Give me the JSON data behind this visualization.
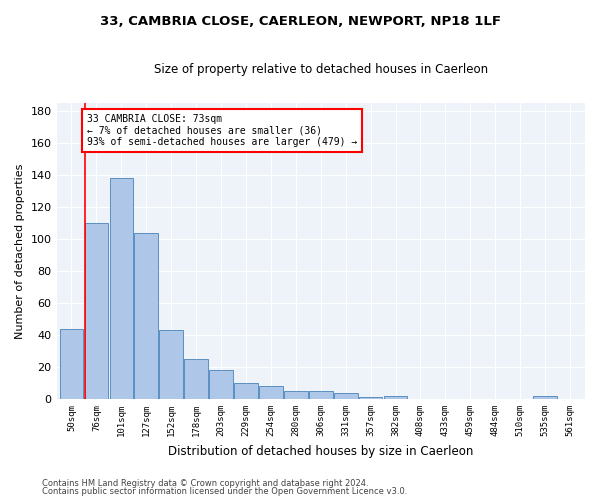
{
  "title1": "33, CAMBRIA CLOSE, CAERLEON, NEWPORT, NP18 1LF",
  "title2": "Size of property relative to detached houses in Caerleon",
  "xlabel": "Distribution of detached houses by size in Caerleon",
  "ylabel": "Number of detached properties",
  "categories": [
    "50sqm",
    "76sqm",
    "101sqm",
    "127sqm",
    "152sqm",
    "178sqm",
    "203sqm",
    "229sqm",
    "254sqm",
    "280sqm",
    "306sqm",
    "331sqm",
    "357sqm",
    "382sqm",
    "408sqm",
    "433sqm",
    "459sqm",
    "484sqm",
    "510sqm",
    "535sqm",
    "561sqm"
  ],
  "values": [
    44,
    110,
    138,
    104,
    43,
    25,
    18,
    10,
    8,
    5,
    5,
    4,
    1,
    2,
    0,
    0,
    0,
    0,
    0,
    2,
    0
  ],
  "bar_color": "#aec6e8",
  "bar_edge_color": "#5a8fc0",
  "annotation_text_line1": "33 CAMBRIA CLOSE: 73sqm",
  "annotation_text_line2": "← 7% of detached houses are smaller (36)",
  "annotation_text_line3": "93% of semi-detached houses are larger (479) →",
  "annotation_box_color": "white",
  "annotation_box_edge_color": "red",
  "marker_line_color": "red",
  "ylim": [
    0,
    185
  ],
  "yticks": [
    0,
    20,
    40,
    60,
    80,
    100,
    120,
    140,
    160,
    180
  ],
  "footnote1": "Contains HM Land Registry data © Crown copyright and database right 2024.",
  "footnote2": "Contains public sector information licensed under the Open Government Licence v3.0.",
  "bg_color": "#eef2f9"
}
